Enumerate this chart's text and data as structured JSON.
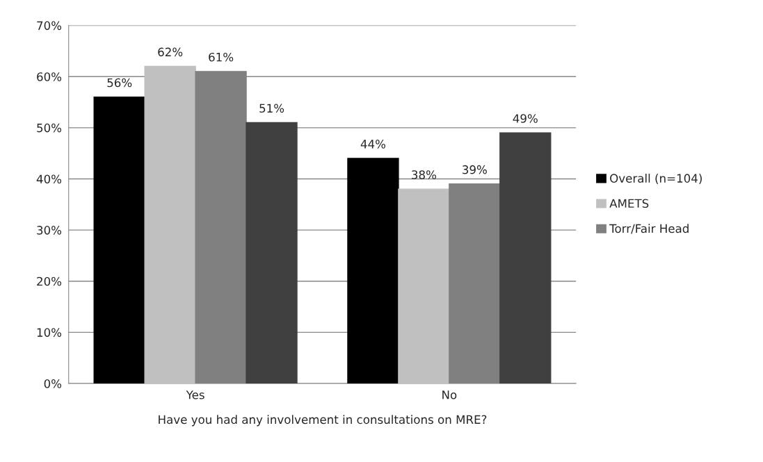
{
  "chart_data": {
    "type": "bar",
    "xlabel": "Have you had any involvement in consultations on MRE?",
    "categories": [
      "Yes",
      "No"
    ],
    "series": [
      {
        "name": "Overall (n=104)",
        "color": "#000000",
        "values": [
          56,
          44
        ]
      },
      {
        "name": "AMETS",
        "color": "#c0c0c0",
        "values": [
          62,
          38
        ]
      },
      {
        "name": "Torr/Fair Head",
        "color": "#808080",
        "values": [
          61,
          39
        ]
      },
      {
        "color": "#404040",
        "values": [
          51,
          49
        ]
      }
    ],
    "ylim": [
      0,
      70
    ],
    "yticks": [
      {
        "value": 0,
        "label": "0%"
      },
      {
        "value": 10,
        "label": "10%"
      },
      {
        "value": 20,
        "label": "20%"
      },
      {
        "value": 30,
        "label": "30%"
      },
      {
        "value": 40,
        "label": "40%"
      },
      {
        "value": 50,
        "label": "50%"
      },
      {
        "value": 60,
        "label": "60%"
      },
      {
        "value": 70,
        "label": "70%"
      }
    ],
    "value_labels": [
      [
        "56%",
        "44%"
      ],
      [
        "62%",
        "38%"
      ],
      [
        "61%",
        "39%"
      ],
      [
        "51%",
        "49%"
      ]
    ],
    "grid": "y",
    "legend": "right"
  }
}
